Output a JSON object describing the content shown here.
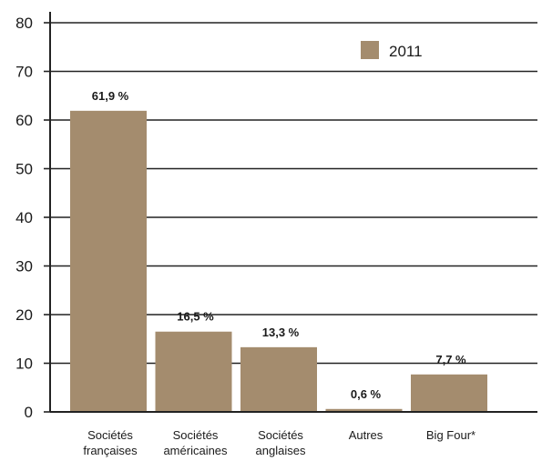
{
  "chart_data": {
    "type": "bar",
    "categories": [
      [
        "Sociétés",
        "françaises"
      ],
      [
        "Sociétés",
        "américaines"
      ],
      [
        "Sociétés",
        "anglaises"
      ],
      [
        "Autres"
      ],
      [
        "Big Four*"
      ]
    ],
    "series": [
      {
        "name": "2011",
        "values": [
          61.9,
          16.5,
          13.3,
          0.6,
          7.7
        ],
        "labels": [
          "61,9 %",
          "16,5 %",
          "13,3 %",
          "0,6 %",
          "7,7 %"
        ]
      }
    ],
    "yticks": [
      "0",
      "10",
      "20",
      "30",
      "40",
      "50",
      "60",
      "70",
      "80"
    ],
    "ylim": [
      0,
      80
    ],
    "grid": true,
    "legend_position": "top-right",
    "colors": {
      "bar": "#a48c6e",
      "grid": "#222222",
      "legend_swatch": "#a48c6e"
    }
  }
}
